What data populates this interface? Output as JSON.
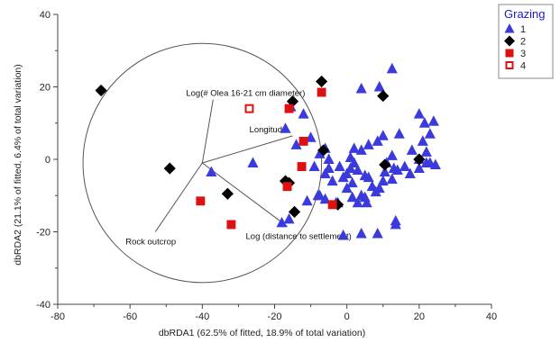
{
  "chart_data": {
    "type": "scatter",
    "xlabel": "dbRDA1 (62.5% of fitted, 18.9% of total variation)",
    "ylabel": "dbRDA2 (21.1% of fitted, 6.4% of total variation)",
    "xlim": [
      -80,
      40
    ],
    "ylim": [
      -40,
      40
    ],
    "x_ticks": [
      "-80",
      "-60",
      "-40",
      "-20",
      "0",
      "20",
      "40"
    ],
    "y_ticks": [
      "-40",
      "-20",
      "0",
      "20",
      "40"
    ],
    "legend": {
      "title": "Grazing",
      "placement": "top-right"
    },
    "colors": {
      "blue": "#3b3bdb",
      "black": "#000000",
      "red": "#dd1111",
      "axis": "#444444"
    },
    "series": [
      {
        "name": "1",
        "marker": "triangle",
        "color": "#3b3bdb",
        "points": [
          [
            12.5,
            25
          ],
          [
            -12,
            12.5
          ],
          [
            -15.5,
            14.5
          ],
          [
            9,
            20
          ],
          [
            4,
            19.5
          ],
          [
            -17,
            8.5
          ],
          [
            -10,
            6
          ],
          [
            -14,
            4
          ],
          [
            -26,
            -1
          ],
          [
            -37.5,
            -3.5
          ],
          [
            -9,
            -2
          ],
          [
            -5,
            -2.5
          ],
          [
            -6,
            -4
          ],
          [
            -4,
            -6
          ],
          [
            -6,
            -11
          ],
          [
            -7.5,
            -10
          ],
          [
            -3,
            -12
          ],
          [
            -5,
            0
          ],
          [
            -7.5,
            1.5
          ],
          [
            -6,
            3
          ],
          [
            2,
            3
          ],
          [
            4,
            2.5
          ],
          [
            6,
            4
          ],
          [
            8.5,
            5
          ],
          [
            10,
            6.5
          ],
          [
            14.5,
            7
          ],
          [
            20,
            12.5
          ],
          [
            21.5,
            10
          ],
          [
            24,
            10.5
          ],
          [
            23,
            7
          ],
          [
            21,
            5
          ],
          [
            18,
            2.5
          ],
          [
            22,
            2
          ],
          [
            20,
            0
          ],
          [
            22,
            -1
          ],
          [
            23,
            -1
          ],
          [
            24.5,
            -1.5
          ],
          [
            16,
            -2
          ],
          [
            20,
            -2.5
          ],
          [
            17.5,
            -4
          ],
          [
            14,
            -3
          ],
          [
            10.5,
            -3.5
          ],
          [
            11,
            -1
          ],
          [
            12.5,
            1
          ],
          [
            13,
            -2.5
          ],
          [
            12.5,
            -5.5
          ],
          [
            10,
            -6
          ],
          [
            9,
            -8
          ],
          [
            8,
            -9
          ],
          [
            7,
            -7.5
          ],
          [
            6,
            -5
          ],
          [
            5,
            -4.5
          ],
          [
            3,
            -3
          ],
          [
            1,
            -2.5
          ],
          [
            -2,
            -2
          ],
          [
            1,
            0.5
          ],
          [
            2,
            -1
          ],
          [
            0,
            -4
          ],
          [
            -1,
            -5
          ],
          [
            1.5,
            -6.5
          ],
          [
            0,
            -8
          ],
          [
            1.5,
            -10.5
          ],
          [
            4,
            -10
          ],
          [
            5,
            -10.5
          ],
          [
            5.5,
            -12
          ],
          [
            3,
            -12
          ],
          [
            -16,
            -16.5
          ],
          [
            -18,
            -17.5
          ],
          [
            -1,
            -21
          ],
          [
            4,
            -20.5
          ],
          [
            8.5,
            -20.5
          ],
          [
            13.5,
            -17
          ],
          [
            13.5,
            -18
          ],
          [
            -8,
            -10
          ],
          [
            -11,
            -11.5
          ],
          [
            -2.5,
            -12
          ]
        ]
      },
      {
        "name": "2",
        "marker": "diamond",
        "color": "#000000",
        "points": [
          [
            -68,
            19
          ],
          [
            -49,
            -2.5
          ],
          [
            -33,
            -9.5
          ],
          [
            -17,
            -6
          ],
          [
            -16,
            -6.5
          ],
          [
            -14.5,
            -14.5
          ],
          [
            -15,
            16
          ],
          [
            -7,
            21.5
          ],
          [
            -6.5,
            2.5
          ],
          [
            -2.5,
            -12.5
          ],
          [
            10,
            17.5
          ],
          [
            10.5,
            -1.5
          ],
          [
            20,
            0
          ]
        ]
      },
      {
        "name": "3",
        "marker": "square",
        "color": "#dd1111",
        "points": [
          [
            -40.5,
            -11.5
          ],
          [
            -32,
            -18
          ],
          [
            -16,
            14
          ],
          [
            -7,
            18.5
          ],
          [
            -12,
            5
          ],
          [
            -12.5,
            -2
          ],
          [
            -16.5,
            -7.5
          ],
          [
            -4,
            -12.5
          ]
        ]
      },
      {
        "name": "4",
        "marker": "open-square",
        "color": "#dd1111",
        "points": [
          [
            -27,
            14
          ]
        ]
      }
    ],
    "vectors": [
      {
        "label": "Log(# Olea 16-21 cm diameter)",
        "end": [
          -37,
          16.5
        ]
      },
      {
        "label": "Longitude",
        "end": [
          -15,
          6.5
        ]
      },
      {
        "label": "Rock outcrop",
        "end": [
          -53,
          -20
        ]
      },
      {
        "label": "Log (distance to settlement)",
        "end": [
          -16.5,
          -18.5
        ]
      }
    ],
    "vector_origin": [
      -40,
      -1
    ],
    "circle": {
      "center": [
        -40,
        -1
      ],
      "radius": 33
    }
  }
}
